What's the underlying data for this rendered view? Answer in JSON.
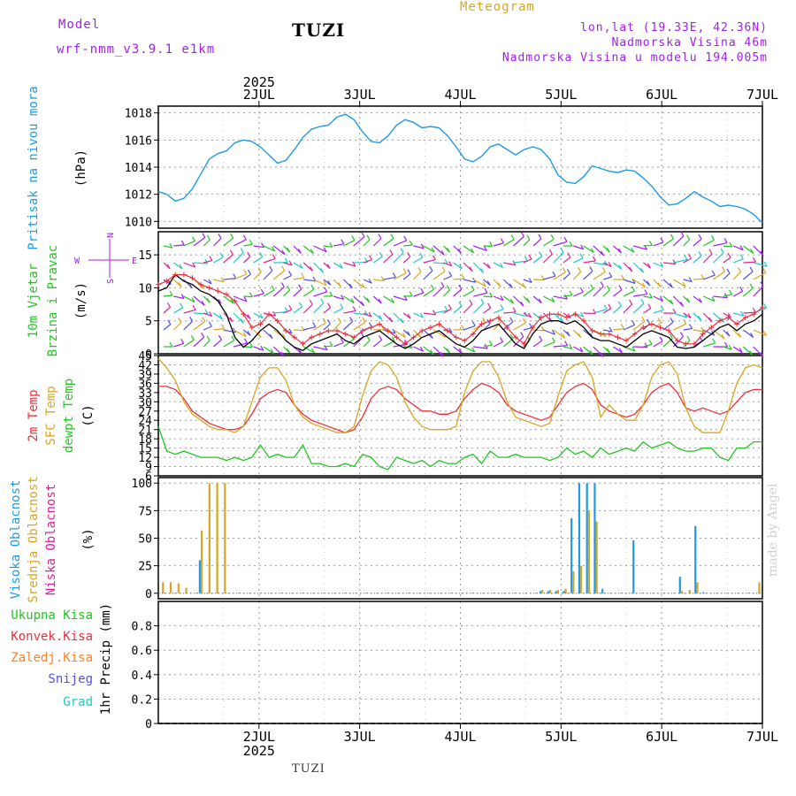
{
  "header": {
    "model_label": "Model",
    "model_name": "wrf-nmm_v3.9.1 e1km",
    "station": "TUZI",
    "meteogram": "Meteogram",
    "lonlat": "lon,lat (19.33E, 42.36N)",
    "elevation": "Nadmorska Visina 46m",
    "model_elevation": "Nadmorska Visina u modelu 194.005m"
  },
  "footer": {
    "station": "TUZI",
    "watermark": "made by Angel"
  },
  "colors": {
    "pressure": "#1e9be6",
    "temp2m": "#e8323c",
    "sfc_temp": "#daa520",
    "dewpoint": "#22c522",
    "high_cloud": "#1e9be6",
    "mid_cloud": "#daa520",
    "low_cloud": "#e0209a",
    "wind_speed": "#000000",
    "wind_gust": "#e8323c",
    "precip_total": "#22c522",
    "precip_conv": "#e8323c",
    "precip_frozen": "#ff7f27",
    "snow": "#5050e6",
    "hail": "#20c8c8",
    "label_purple": "#a020f0"
  },
  "chart_data": [
    {
      "type": "line",
      "panel": "pressure",
      "ylabel_lines": [
        "Pritisak na nivou mora",
        "(hPa)"
      ],
      "x_tick_labels": [
        "2JUL",
        "3JUL",
        "4JUL",
        "5JUL",
        "6JUL",
        "7JUL"
      ],
      "x_year": "2025",
      "ylim": [
        1009.5,
        1018.5
      ],
      "y_ticks": [
        1010,
        1012,
        1014,
        1016,
        1018
      ],
      "grid": true,
      "series": [
        {
          "values": [
            1012.2,
            1012.0,
            1011.5,
            1011.7,
            1012.4,
            1013.5,
            1014.6,
            1015.0,
            1015.2,
            1015.8,
            1016.0,
            1015.9,
            1015.5,
            1014.9,
            1014.3,
            1014.5,
            1015.3,
            1016.2,
            1016.8,
            1017.0,
            1017.1,
            1017.7,
            1017.9,
            1017.5,
            1016.6,
            1015.9,
            1015.8,
            1016.3,
            1017.1,
            1017.5,
            1017.3,
            1016.9,
            1017.0,
            1016.9,
            1016.3,
            1015.5,
            1014.6,
            1014.4,
            1014.8,
            1015.5,
            1015.7,
            1015.3,
            1014.9,
            1015.3,
            1015.5,
            1015.3,
            1014.6,
            1013.4,
            1012.9,
            1012.8,
            1013.3,
            1014.1,
            1013.9,
            1013.7,
            1013.6,
            1013.8,
            1013.7,
            1013.2,
            1012.6,
            1011.8,
            1011.2,
            1011.3,
            1011.7,
            1012.2,
            1011.8,
            1011.5,
            1011.1,
            1011.2,
            1011.1,
            1010.9,
            1010.5,
            1009.9
          ]
        }
      ]
    },
    {
      "type": "line",
      "panel": "wind",
      "ylabel_lines": [
        "10m Vjetar",
        "Brzina i Pravac",
        "(m/s)"
      ],
      "compass": {
        "north": "N",
        "south": "S",
        "west": "W",
        "east": "E"
      },
      "ylim": [
        0,
        18.5
      ],
      "y_ticks": [
        0,
        5,
        10,
        15
      ],
      "grid": true,
      "series": [
        {
          "values": [
            9.5,
            10.0,
            12.0,
            11.0,
            10.5,
            9.5,
            9.0,
            8.0,
            6.0,
            2.5,
            1.0,
            2.0,
            3.5,
            4.5,
            3.5,
            2.0,
            1.0,
            0.5,
            1.5,
            2.0,
            2.5,
            3.0,
            2.0,
            1.5,
            2.5,
            3.0,
            3.5,
            2.5,
            1.5,
            0.8,
            1.5,
            2.5,
            3.0,
            3.5,
            2.5,
            1.5,
            1.0,
            2.0,
            3.5,
            4.0,
            4.5,
            3.0,
            1.5,
            0.8,
            3.0,
            4.5,
            5.0,
            5.0,
            4.5,
            5.0,
            4.0,
            2.5,
            2.0,
            2.0,
            1.5,
            1.0,
            2.0,
            3.0,
            3.5,
            3.0,
            2.5,
            1.0,
            0.8,
            1.0,
            2.0,
            3.0,
            4.0,
            4.5,
            3.5,
            4.5,
            5.0,
            6.0
          ]
        },
        {
          "values": [
            10.5,
            11.0,
            12.0,
            12.0,
            11.5,
            10.5,
            10.0,
            9.5,
            9.0,
            8.0,
            6.0,
            4.0,
            4.5,
            6.0,
            5.0,
            3.5,
            2.5,
            1.5,
            2.5,
            3.0,
            3.5,
            3.5,
            3.0,
            2.5,
            3.5,
            4.0,
            4.5,
            3.5,
            2.5,
            1.5,
            2.5,
            3.5,
            4.0,
            4.5,
            3.5,
            2.5,
            2.0,
            3.0,
            4.5,
            5.0,
            5.5,
            4.0,
            2.5,
            1.5,
            4.0,
            5.5,
            6.0,
            6.0,
            5.5,
            6.0,
            5.0,
            3.5,
            3.0,
            3.0,
            2.5,
            2.0,
            3.0,
            4.0,
            4.5,
            4.0,
            3.5,
            2.0,
            1.5,
            1.5,
            3.0,
            4.0,
            5.0,
            5.5,
            4.5,
            5.5,
            6.0,
            7.0
          ]
        }
      ]
    },
    {
      "type": "line",
      "panel": "temperature",
      "ylabel_lines": [
        "2m Temp",
        "SFC Temp",
        "dewpt Temp",
        "(C)"
      ],
      "ylim": [
        6,
        45
      ],
      "y_ticks": [
        6,
        9,
        12,
        15,
        18,
        21,
        24,
        27,
        30,
        33,
        36,
        39,
        42,
        45
      ],
      "grid": true,
      "series": [
        {
          "values": [
            35,
            35,
            34,
            31,
            27,
            25,
            23,
            22,
            21,
            21,
            22,
            26,
            31,
            33,
            34,
            33,
            29,
            26,
            24,
            23,
            22,
            21,
            20,
            21,
            25,
            31,
            34,
            35,
            34,
            31,
            29,
            27,
            27,
            26,
            26,
            27,
            31,
            34,
            36,
            35,
            33,
            29,
            27,
            26,
            25,
            24,
            25,
            29,
            33,
            35,
            36,
            34,
            29,
            27,
            26,
            25,
            26,
            29,
            33,
            35,
            36,
            33,
            28,
            27,
            28,
            27,
            26,
            27,
            30,
            33,
            34,
            34
          ]
        },
        {
          "values": [
            44,
            41,
            37,
            30,
            26,
            24,
            22,
            21,
            21,
            20,
            22,
            30,
            38,
            41,
            41,
            37,
            29,
            25,
            23,
            22,
            21,
            20,
            20,
            22,
            32,
            40,
            43,
            42,
            38,
            30,
            25,
            22,
            21,
            21,
            21,
            22,
            33,
            40,
            43,
            43,
            38,
            30,
            25,
            24,
            23,
            22,
            23,
            32,
            40,
            42,
            43,
            38,
            25,
            29,
            26,
            24,
            24,
            29,
            38,
            42,
            43,
            39,
            28,
            22,
            20,
            20,
            20,
            27,
            36,
            41,
            42,
            41
          ]
        },
        {
          "values": [
            22,
            14,
            13,
            14,
            13,
            12,
            12,
            12,
            11,
            12,
            11,
            12,
            16,
            12,
            13,
            12,
            12,
            16,
            10,
            10,
            9,
            9,
            10,
            9,
            13,
            12,
            9,
            8,
            12,
            11,
            10,
            11,
            9,
            11,
            10,
            10,
            12,
            13,
            10,
            14,
            12,
            12,
            13,
            12,
            12,
            12,
            11,
            12,
            15,
            13,
            14,
            12,
            15,
            13,
            14,
            15,
            14,
            17,
            15,
            16,
            17,
            15,
            14,
            14,
            15,
            15,
            12,
            11,
            15,
            15,
            17,
            17
          ]
        }
      ]
    },
    {
      "type": "bar",
      "panel": "cloud",
      "ylabel_lines": [
        "Visoka Oblacnost",
        "Srednja Oblacnost",
        "Niska Oblacnost",
        "(%)"
      ],
      "ylim": [
        -5,
        105
      ],
      "y_ticks": [
        0,
        25,
        50,
        75,
        100
      ],
      "grid": true,
      "series": [
        {
          "values": [
            0,
            0,
            0,
            0,
            0,
            30,
            0,
            0,
            0,
            0,
            0,
            0,
            0,
            0,
            0,
            0,
            0,
            0,
            0,
            0,
            0,
            0,
            0,
            0,
            0,
            0,
            0,
            0,
            0,
            0,
            0,
            0,
            0,
            0,
            0,
            0,
            0,
            0,
            0,
            0,
            0,
            0,
            0,
            0,
            0,
            0,
            0,
            0,
            0,
            2,
            2,
            2,
            2,
            68,
            100,
            100,
            100,
            4,
            0,
            0,
            0,
            48,
            0,
            0,
            0,
            0,
            0,
            15,
            0,
            61,
            1,
            0,
            0,
            0,
            0,
            0,
            0,
            0
          ]
        },
        {
          "values": [
            10,
            10,
            9,
            5,
            0,
            57,
            100,
            100,
            100,
            0,
            0,
            0,
            0,
            0,
            0,
            0,
            0,
            0,
            0,
            0,
            0,
            0,
            0,
            0,
            0,
            0,
            0,
            0,
            0,
            0,
            0,
            0,
            0,
            0,
            0,
            0,
            0,
            0,
            0,
            0,
            0,
            0,
            0,
            0,
            0,
            0,
            0,
            0,
            0,
            3,
            3,
            3,
            4,
            20,
            25,
            75,
            65,
            0,
            0,
            0,
            0,
            0,
            0,
            0,
            0,
            0,
            0,
            2,
            3,
            10,
            0,
            0,
            0,
            0,
            0,
            0,
            0,
            10
          ]
        },
        {
          "values": [
            0,
            0,
            0,
            0,
            0,
            0,
            0,
            0,
            0,
            0,
            0,
            0,
            0,
            0,
            0,
            0,
            0,
            0,
            0,
            0,
            0,
            0,
            0,
            0,
            0,
            0,
            0,
            0,
            0,
            0,
            0,
            0,
            0,
            0,
            0,
            0,
            0,
            0,
            0,
            0,
            0,
            0,
            0,
            0,
            0,
            0,
            0,
            0,
            0,
            0,
            0,
            0,
            0,
            0,
            0,
            0,
            0,
            0,
            0,
            0,
            0,
            0,
            0,
            0,
            0,
            0,
            0,
            0,
            0,
            0,
            0,
            0,
            0,
            0,
            0,
            0,
            0,
            0
          ]
        }
      ]
    },
    {
      "type": "line",
      "panel": "precip",
      "ylabel_lines": [
        "Ukupna Kisa",
        "Konvek.Kisa",
        "Zaledj.Kisa",
        "Snijeg",
        "Grad",
        "1hr Precip (mm)"
      ],
      "ylim": [
        0,
        1
      ],
      "y_ticks": [
        0,
        0.2,
        0.4,
        0.6,
        0.8
      ],
      "x_tick_labels": [
        "2JUL",
        "3JUL",
        "4JUL",
        "5JUL",
        "6JUL",
        "7JUL"
      ],
      "x_year": "2025",
      "grid": true,
      "series": [
        {
          "values": []
        }
      ]
    }
  ]
}
